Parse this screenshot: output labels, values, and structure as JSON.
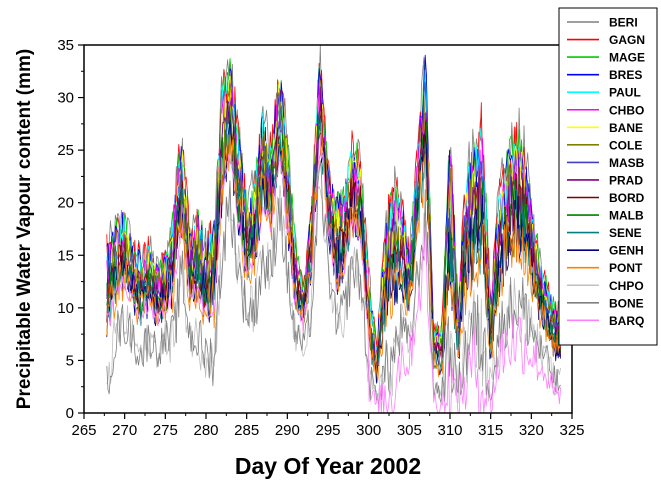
{
  "chart_data": {
    "type": "line",
    "xlabel": "Day Of Year 2002",
    "ylabel": "Precipitable Water Vapour content (mm)",
    "xlim": [
      265,
      325
    ],
    "ylim": [
      0,
      35
    ],
    "x_ticks": [
      265,
      270,
      275,
      280,
      285,
      290,
      295,
      300,
      305,
      310,
      315,
      320,
      325
    ],
    "y_ticks": [
      0,
      5,
      10,
      15,
      20,
      25,
      30,
      35
    ],
    "grid": false,
    "legend_position": "top-right outside",
    "envelope_days": [
      268,
      269,
      270,
      271,
      272,
      273,
      274,
      275,
      276,
      277,
      278,
      279,
      280,
      281,
      282,
      283,
      284,
      285,
      286,
      287,
      288,
      289,
      290,
      291,
      292,
      293,
      294,
      295,
      296,
      297,
      298,
      299,
      300,
      301,
      302,
      303,
      304,
      305,
      306,
      307,
      308,
      309,
      310,
      311,
      312,
      313,
      314,
      315,
      316,
      317,
      318,
      319,
      320,
      321,
      322,
      323
    ],
    "envelope_max": [
      16,
      18,
      19,
      16,
      15,
      16,
      14,
      15,
      19,
      27,
      17,
      19,
      16,
      18,
      31,
      33,
      27,
      20,
      22,
      29,
      25,
      33,
      26,
      16,
      12,
      20,
      34,
      23,
      20,
      21,
      26,
      24,
      13,
      6,
      17,
      22,
      20,
      15,
      25,
      35,
      8,
      8,
      27,
      10,
      23,
      25,
      28,
      10,
      21,
      24,
      27,
      26,
      20,
      15,
      12,
      10
    ],
    "envelope_min": [
      1,
      5,
      6,
      5,
      3,
      5,
      4,
      5,
      4,
      10,
      5,
      4,
      3,
      2,
      12,
      17,
      10,
      7,
      7,
      11,
      10,
      17,
      10,
      5,
      5,
      7,
      20,
      12,
      5,
      7,
      11,
      10,
      1,
      0.5,
      0.5,
      1,
      5,
      4,
      10,
      14,
      1,
      0.5,
      1,
      0.5,
      2,
      4,
      1,
      0.5,
      4,
      6,
      6,
      6,
      5,
      4,
      3,
      1
    ],
    "series": [
      {
        "name": "BERI",
        "color": "#808080"
      },
      {
        "name": "GAGN",
        "color": "#ff0000"
      },
      {
        "name": "MAGE",
        "color": "#00cc00"
      },
      {
        "name": "BRES",
        "color": "#0000ff"
      },
      {
        "name": "PAUL",
        "color": "#00ffff"
      },
      {
        "name": "CHBO",
        "color": "#ff00ff"
      },
      {
        "name": "BANE",
        "color": "#ffff00"
      },
      {
        "name": "COLE",
        "color": "#808000"
      },
      {
        "name": "MASB",
        "color": "#4040c0"
      },
      {
        "name": "PRAD",
        "color": "#800080"
      },
      {
        "name": "BORD",
        "color": "#800000"
      },
      {
        "name": "MALB",
        "color": "#008000"
      },
      {
        "name": "SENE",
        "color": "#008080"
      },
      {
        "name": "GENH",
        "color": "#000080"
      },
      {
        "name": "PONT",
        "color": "#ff8000"
      },
      {
        "name": "CHPO",
        "color": "#c0c0c0"
      },
      {
        "name": "BONE",
        "color": "#808080"
      },
      {
        "name": "BARQ",
        "color": "#ff80ff"
      }
    ]
  }
}
